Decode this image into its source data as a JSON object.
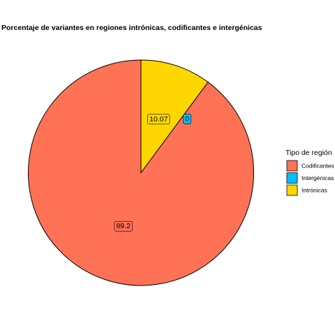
{
  "chart_data": {
    "type": "pie",
    "title": "Porcentaje de variantes en regiones intrónicas, codificantes e intergénicas",
    "slices": [
      {
        "name": "Intrónicas",
        "value": 10.07,
        "color": "#FFD700",
        "label": "10.07"
      },
      {
        "name": "Intergénicas",
        "value": 0,
        "color": "#00BFFF",
        "label": "0"
      },
      {
        "name": "Codificantes",
        "value": 89.2,
        "color": "#FF7256",
        "label": "89.2"
      }
    ],
    "legend": {
      "title": "Tipo de región",
      "placement": "right",
      "entries": [
        {
          "name": "Codificantes",
          "color": "#FF7256"
        },
        {
          "name": "Intergénicas",
          "color": "#00BFFF"
        },
        {
          "name": "Intrónicas",
          "color": "#FFD700"
        }
      ]
    }
  }
}
